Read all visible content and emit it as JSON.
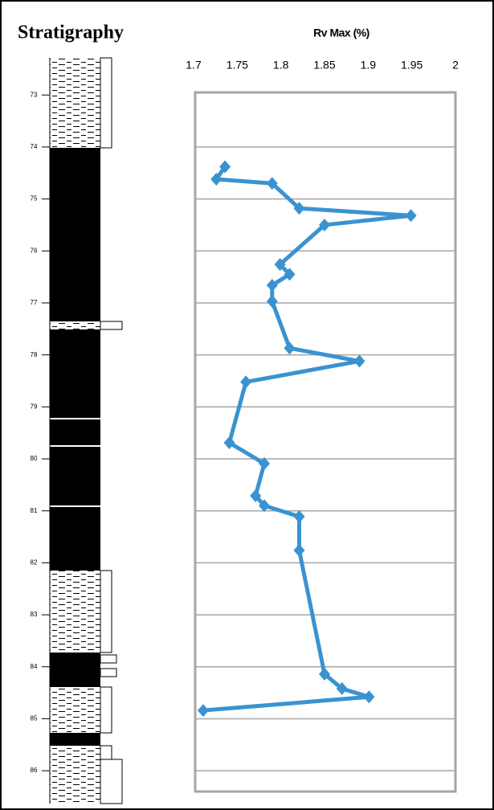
{
  "column_title": "Stratigraphy",
  "chart_data": {
    "type": "line",
    "title": "Rv Max (%)",
    "xlim": [
      1.7,
      2
    ],
    "xticks": [
      1.7,
      1.75,
      1.8,
      1.85,
      1.9,
      1.95,
      2
    ],
    "ylim": [
      72.95,
      86.4
    ],
    "yticks": [
      73,
      74,
      75,
      76,
      77,
      78,
      79,
      80,
      81,
      82,
      83,
      84,
      85,
      86
    ],
    "grid": true,
    "y_inverted": true,
    "depths": [
      74.38,
      74.62,
      74.7,
      75.18,
      75.32,
      75.5,
      76.26,
      76.45,
      76.66,
      76.97,
      77.87,
      78.12,
      78.52,
      79.69,
      80.09,
      80.71,
      80.9,
      81.11,
      81.76,
      84.14,
      84.42,
      84.58,
      84.84
    ],
    "series": [
      {
        "color": "#3a93d0",
        "values": [
          1.736,
          1.726,
          1.79,
          1.821,
          1.949,
          1.85,
          1.799,
          1.81,
          1.79,
          1.79,
          1.81,
          1.89,
          1.76,
          1.741,
          1.781,
          1.771,
          1.781,
          1.821,
          1.821,
          1.85,
          1.87,
          1.901,
          1.711
        ]
      }
    ]
  }
}
